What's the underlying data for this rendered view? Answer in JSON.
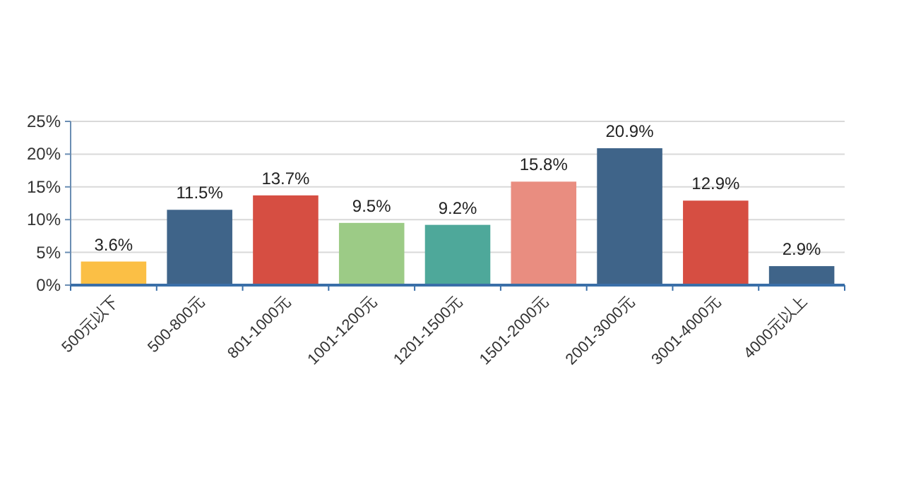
{
  "chart_data": {
    "type": "bar",
    "categories": [
      "500元以下",
      "500-800元",
      "801-1000元",
      "1001-1200元",
      "1201-1500元",
      "1501-2000元",
      "2001-3000元",
      "3001-4000元",
      "4000元以上"
    ],
    "values": [
      3.6,
      11.5,
      13.7,
      9.5,
      9.2,
      15.8,
      20.9,
      12.9,
      2.9
    ],
    "colors": [
      "#fbbf45",
      "#3f6489",
      "#d64e42",
      "#9ccb86",
      "#4ea89a",
      "#e98d80",
      "#3f6489",
      "#d64e42",
      "#3f6489"
    ],
    "value_labels": [
      "3.6%",
      "11.5%",
      "13.7%",
      "9.5%",
      "9.2%",
      "15.8%",
      "20.9%",
      "12.9%",
      "2.9%"
    ],
    "ylim": [
      0,
      25
    ],
    "yticks": [
      {
        "value": 0,
        "label": "0%"
      },
      {
        "value": 5,
        "label": "5%"
      },
      {
        "value": 10,
        "label": "10%"
      },
      {
        "value": 15,
        "label": "15%"
      },
      {
        "value": 20,
        "label": "20%"
      },
      {
        "value": 25,
        "label": "25%"
      }
    ],
    "grid": "y"
  }
}
